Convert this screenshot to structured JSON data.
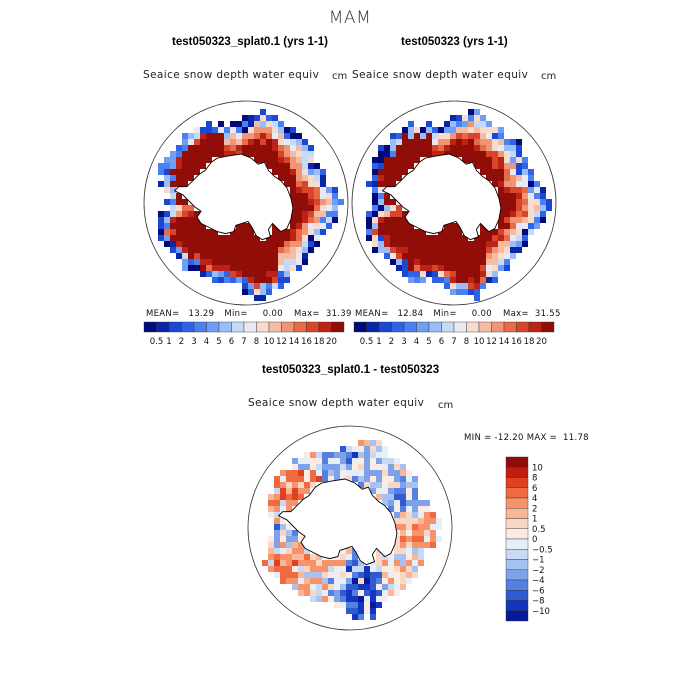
{
  "season": "MAM",
  "panels": {
    "left": {
      "title": "test050323_splat0.1 (yrs 1-1)",
      "variable": "Seaice snow depth water equiv",
      "unit": "cm",
      "stats": {
        "mean": "13.29",
        "min": "0.00",
        "max": "31.39",
        "mean_label": "MEAN=",
        "min_label": "Min=",
        "max_label": "Max="
      }
    },
    "right": {
      "title": "test050323 (yrs 1-1)",
      "variable": "Seaice snow depth water equiv",
      "unit": "cm",
      "stats": {
        "mean": "12.84",
        "min": "0.00",
        "max": "31.55",
        "mean_label": "MEAN=",
        "min_label": "Min=",
        "max_label": "Max="
      }
    },
    "diff": {
      "title": "test050323_splat0.1 - test050323",
      "variable": "Seaice snow depth water equiv",
      "unit": "cm",
      "minmax": "MIN = -12.20 MAX =  11.78"
    }
  },
  "chart_data": [
    {
      "type": "heatmap",
      "projection": "south-polar-stereographic",
      "title": "test050323_splat0.1 (yrs 1-1)",
      "variable": "Seaice snow depth water equiv",
      "unit": "cm",
      "colorbar_levels": [
        "0.5",
        "1",
        "2",
        "3",
        "4",
        "5",
        "6",
        "7",
        "8",
        "10",
        "12",
        "14",
        "16",
        "18",
        "20"
      ],
      "colorbar_colors": [
        "#000a78",
        "#0826a8",
        "#1a47d4",
        "#2e63e6",
        "#4a80f2",
        "#6f9ef7",
        "#98bdf8",
        "#c4daf7",
        "#eae8f2",
        "#f8dccb",
        "#f6bca3",
        "#f09676",
        "#e76a49",
        "#d8452a",
        "#bb2316",
        "#900d08"
      ],
      "stats": {
        "mean": 13.29,
        "min": 0.0,
        "max": 31.39
      }
    },
    {
      "type": "heatmap",
      "projection": "south-polar-stereographic",
      "title": "test050323 (yrs 1-1)",
      "variable": "Seaice snow depth water equiv",
      "unit": "cm",
      "colorbar_levels": [
        "0.5",
        "1",
        "2",
        "3",
        "4",
        "5",
        "6",
        "7",
        "8",
        "10",
        "12",
        "14",
        "16",
        "18",
        "20"
      ],
      "colorbar_colors": [
        "#000a78",
        "#0826a8",
        "#1a47d4",
        "#2e63e6",
        "#4a80f2",
        "#6f9ef7",
        "#98bdf8",
        "#c4daf7",
        "#eae8f2",
        "#f8dccb",
        "#f6bca3",
        "#f09676",
        "#e76a49",
        "#d8452a",
        "#bb2316",
        "#900d08"
      ],
      "stats": {
        "mean": 12.84,
        "min": 0.0,
        "max": 31.55
      }
    },
    {
      "type": "heatmap",
      "projection": "south-polar-stereographic",
      "title": "test050323_splat0.1 - test050323",
      "variable": "Seaice snow depth water equiv",
      "unit": "cm",
      "colorbar_levels": [
        "10",
        "8",
        "6",
        "4",
        "2",
        "1",
        "0.5",
        "0",
        "-0.5",
        "-1",
        "-2",
        "-4",
        "-6",
        "-8",
        "-10"
      ],
      "colorbar_colors": [
        "#8f0c08",
        "#c21d10",
        "#e0401f",
        "#ef6a3e",
        "#f6936a",
        "#f8b796",
        "#fad6c4",
        "#fbece3",
        "#e6eef9",
        "#c8d9f4",
        "#a6c2f0",
        "#7ea2ea",
        "#5580e0",
        "#2f5ad2",
        "#1236bd",
        "#08189a"
      ],
      "stats": {
        "min": -12.2,
        "max": 11.78
      }
    }
  ],
  "colors": {
    "land": "#ffffff",
    "coast": "#000000",
    "frame": "#333333"
  }
}
